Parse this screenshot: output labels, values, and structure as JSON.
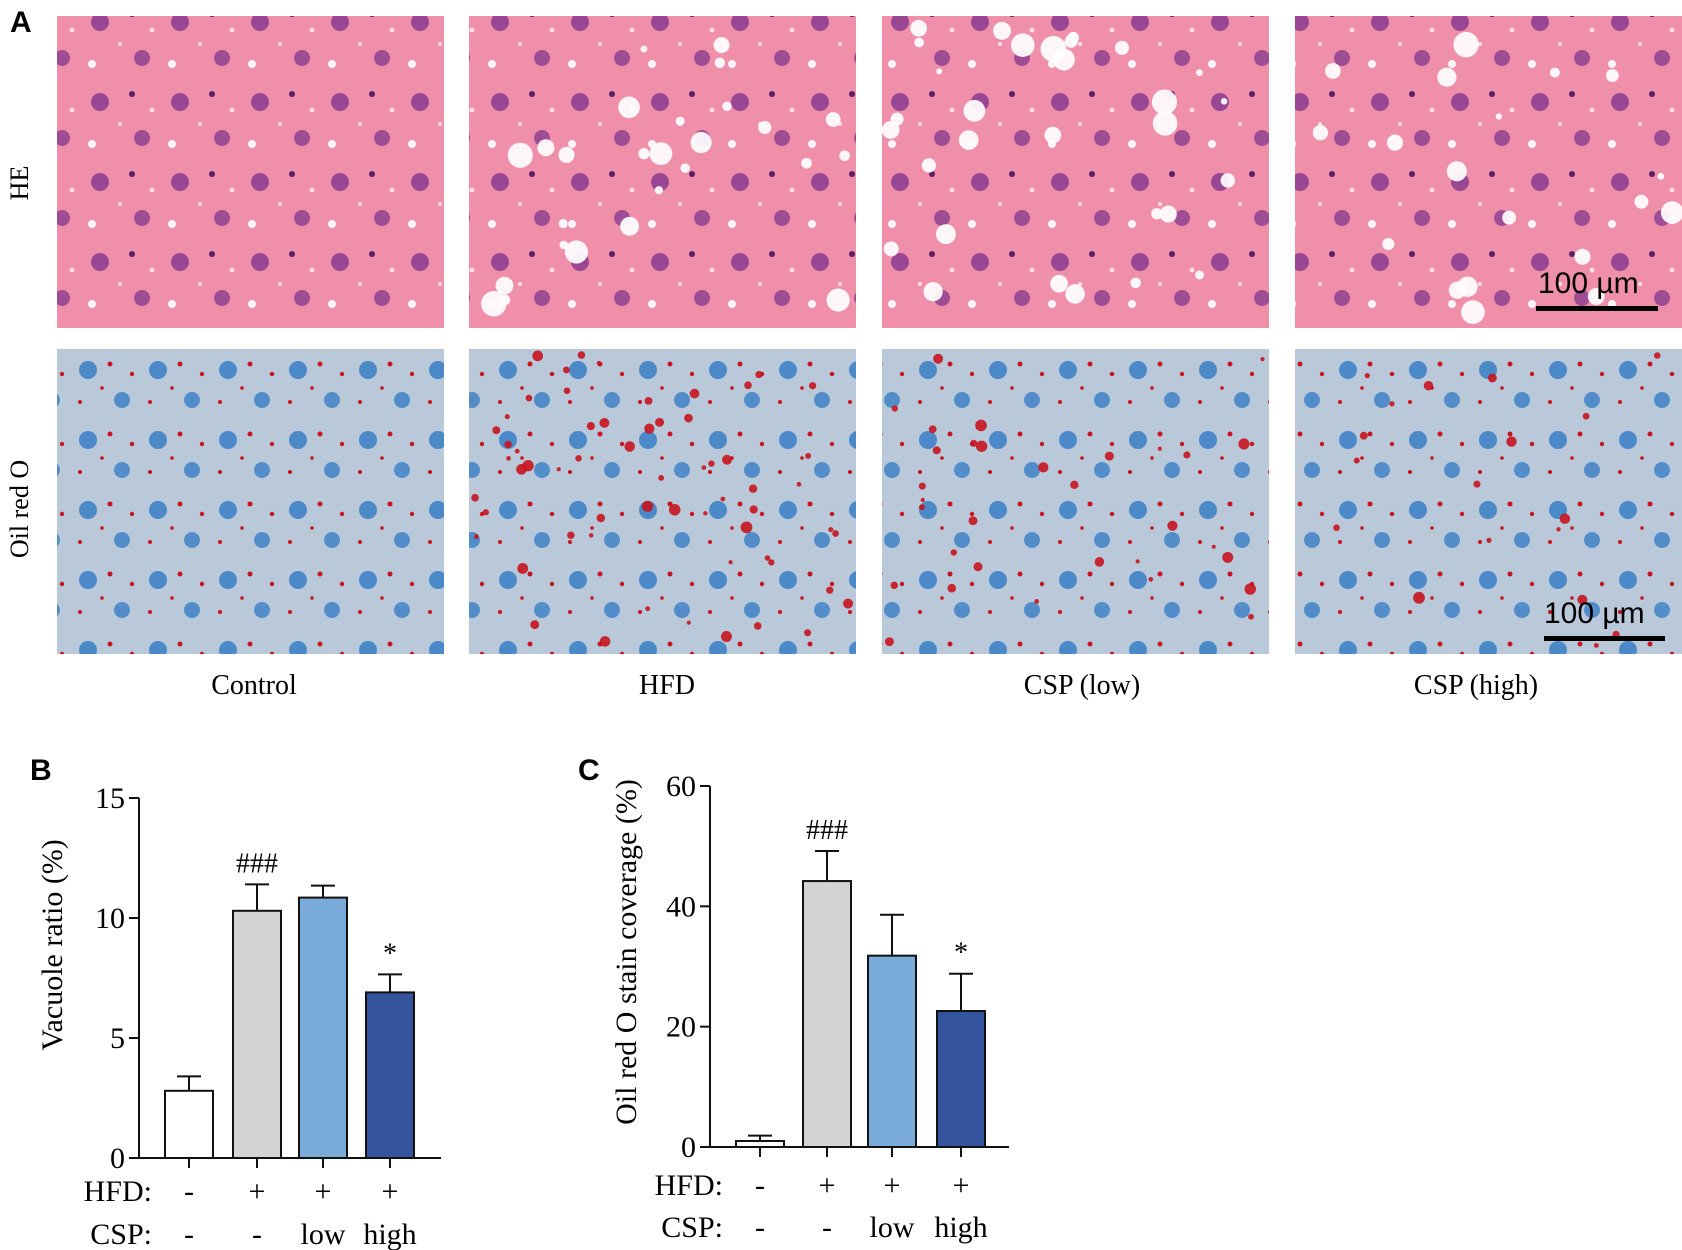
{
  "panel_a": {
    "letter": "A",
    "row_labels": [
      "HE",
      "Oil red O"
    ],
    "group_labels": [
      "Control",
      "HFD",
      "CSP (low)",
      "CSP (high)"
    ],
    "scale_bar_label": "100 µm",
    "colors": {
      "he_background": "#ef8faa",
      "he_nucleus": "#8a3b8f",
      "vacuole": "#ffffff",
      "oro_background": "#b9c9d9",
      "oro_nucleus": "#3f82c8",
      "oro_lipid": "#c8141e"
    }
  },
  "panel_b": {
    "letter": "B",
    "row_labels": [
      "HFD:",
      "CSP:"
    ],
    "hfd": [
      "-",
      "+",
      "+",
      "+"
    ],
    "csp": [
      "-",
      "-",
      "low",
      "high"
    ]
  },
  "panel_c": {
    "letter": "C",
    "row_labels": [
      "HFD:",
      "CSP:"
    ],
    "hfd": [
      "-",
      "+",
      "+",
      "+"
    ],
    "csp": [
      "-",
      "-",
      "low",
      "high"
    ]
  },
  "chart_data": [
    {
      "type": "bar",
      "panel": "B",
      "categories": [
        "Control",
        "HFD",
        "CSP (low)",
        "CSP (high)"
      ],
      "values": [
        2.8,
        10.3,
        10.85,
        6.9
      ],
      "errors": [
        0.6,
        1.1,
        0.5,
        0.75
      ],
      "annotations": [
        "",
        "###",
        "",
        "*"
      ],
      "ylabel": "Vacuole ratio (%)",
      "ylim": [
        0,
        15
      ],
      "yticks": [
        0,
        5,
        10,
        15
      ],
      "bar_colors": [
        "#ffffff",
        "#d3d3d3",
        "#7aaad8",
        "#34559e"
      ]
    },
    {
      "type": "bar",
      "panel": "C",
      "categories": [
        "Control",
        "HFD",
        "CSP (low)",
        "CSP (high)"
      ],
      "values": [
        1.0,
        44.2,
        31.8,
        22.6
      ],
      "errors": [
        0.9,
        5.0,
        6.8,
        6.2
      ],
      "annotations": [
        "",
        "###",
        "",
        "*"
      ],
      "ylabel": "Oil red O stain coverage (%)",
      "ylim": [
        0,
        60
      ],
      "yticks": [
        0,
        20,
        40,
        60
      ],
      "bar_colors": [
        "#ffffff",
        "#d3d3d3",
        "#7aaad8",
        "#34559e"
      ]
    }
  ]
}
